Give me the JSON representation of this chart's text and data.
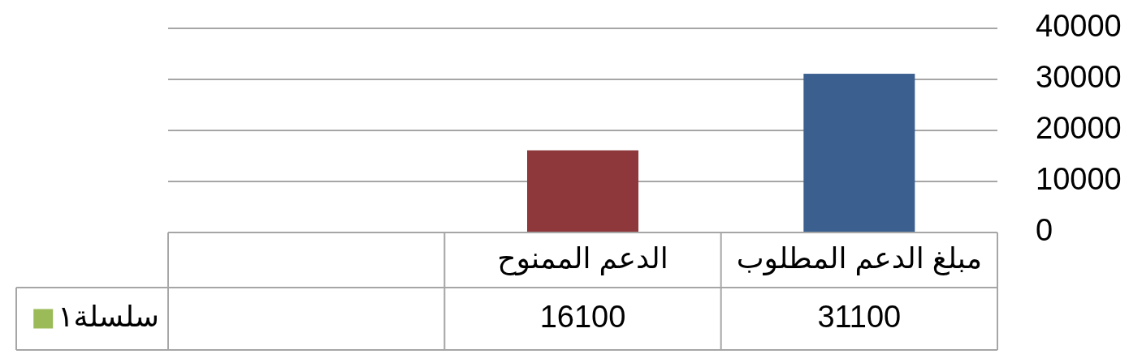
{
  "chart_data": {
    "type": "bar",
    "categories": [
      null,
      "الدعم الممنوح",
      "مبلغ الدعم المطلوب"
    ],
    "series": [
      {
        "name": "سلسلة١",
        "color": "#9bbb59",
        "colors": [
          null,
          "#8e383b",
          "#3b5f8f"
        ],
        "values": [
          null,
          16100,
          31100
        ]
      }
    ],
    "ylim": [
      0,
      40000
    ],
    "yticks": [
      0,
      10000,
      20000,
      30000,
      40000
    ],
    "grid": "y",
    "data_labels": true,
    "legend": "left"
  }
}
